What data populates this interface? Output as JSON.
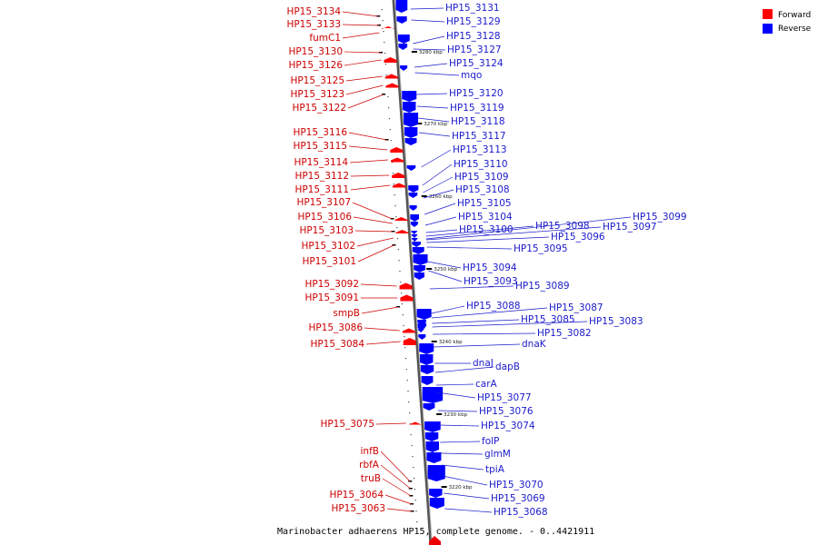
{
  "caption": "Marinobacter adhaerens HP15, complete genome. - 0..4421911",
  "legend": [
    {
      "label": "Forward",
      "color": "#ff0000"
    },
    {
      "label": "Reverse",
      "color": "#0000ff"
    }
  ],
  "colors": {
    "forward": "#cc0000",
    "reverse": "#1a1acc",
    "forward_fill": "#ff0000",
    "reverse_fill": "#0000ff",
    "backbone": "#888888"
  },
  "ticks": [
    "3280 kbp",
    "3270 kbp",
    "3260 kbp",
    "3250 kbp",
    "3240 kbp",
    "3230 kbp",
    "3220 kbp"
  ],
  "forward_genes": [
    "HP15_3134",
    "HP15_3133",
    "fumC1",
    "HP15_3130",
    "HP15_3126",
    "HP15_3125",
    "HP15_3123",
    "HP15_3122",
    "HP15_3116",
    "HP15_3115",
    "HP15_3114",
    "HP15_3112",
    "HP15_3111",
    "HP15_3107",
    "HP15_3106",
    "HP15_3103",
    "HP15_3102",
    "HP15_3101",
    "HP15_3092",
    "HP15_3091",
    "smpB",
    "HP15_3086",
    "HP15_3084",
    "HP15_3075",
    "infB",
    "rbfA",
    "truB",
    "HP15_3064",
    "HP15_3063"
  ],
  "reverse_genes": [
    "HP15_3131",
    "HP15_3129",
    "HP15_3128",
    "HP15_3127",
    "HP15_3124",
    "mqo",
    "HP15_3120",
    "HP15_3119",
    "HP15_3118",
    "HP15_3117",
    "HP15_3113",
    "HP15_3110",
    "HP15_3109",
    "HP15_3108",
    "HP15_3105",
    "HP15_3104",
    "HP15_3100",
    "HP15_3098",
    "HP15_3099",
    "HP15_3097",
    "HP15_3096",
    "HP15_3095",
    "HP15_3094",
    "HP15_3093",
    "HP15_3089",
    "HP15_3088",
    "HP15_3087",
    "HP15_3085",
    "HP15_3083",
    "HP15_3082",
    "dnaK",
    "dnaJ",
    "dapB",
    "carA",
    "HP15_3077",
    "HP15_3076",
    "HP15_3074",
    "folP",
    "glmM",
    "tpiA",
    "HP15_3070",
    "HP15_3069",
    "HP15_3068"
  ]
}
